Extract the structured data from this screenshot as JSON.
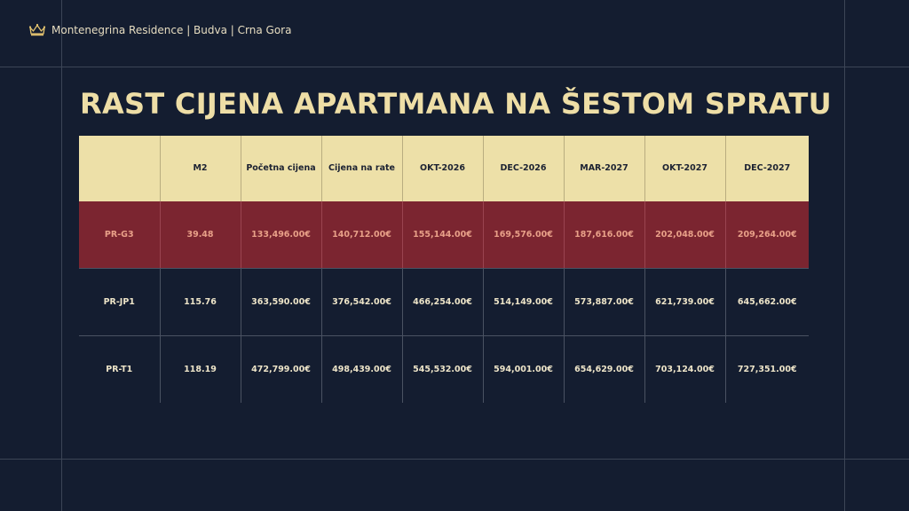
{
  "brand": {
    "icon": "crown-icon",
    "text": "Montenegrina Residence | Budva | Crna Gora"
  },
  "title": "RAST CIJENA APARTMANA NA ŠESTOM SPRATU",
  "colors": {
    "background": "#141d30",
    "accent": "#ede0a8",
    "highlight_row": "#7b2530",
    "highlight_text": "#e8a088"
  },
  "table": {
    "headers": [
      "",
      "M2",
      "Početna cijena",
      "Cijena na rate",
      "OKT-2026",
      "DEC-2026",
      "MAR-2027",
      "OKT-2027",
      "DEC-2027"
    ],
    "rows": [
      [
        "PR-G3",
        "39.48",
        "133,496.00€",
        "140,712.00€",
        "155,144.00€",
        "169,576.00€",
        "187,616.00€",
        "202,048.00€",
        "209,264.00€"
      ],
      [
        "PR-JP1",
        "115.76",
        "363,590.00€",
        "376,542.00€",
        "466,254.00€",
        "514,149.00€",
        "573,887.00€",
        "621,739.00€",
        "645,662.00€"
      ],
      [
        "PR-T1",
        "118.19",
        "472,799.00€",
        "498,439.00€",
        "545,532.00€",
        "594,001.00€",
        "654,629.00€",
        "703,124.00€",
        "727,351.00€"
      ]
    ]
  }
}
